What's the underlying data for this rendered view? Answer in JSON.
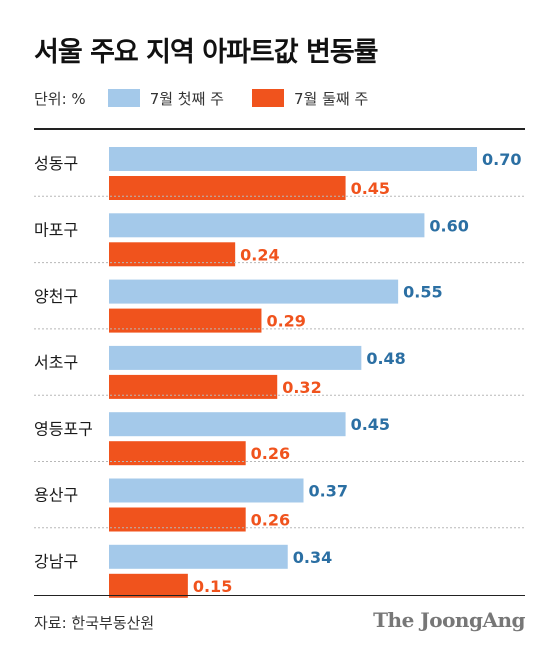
{
  "title": "서울 주요 지역 아파트값 변동률",
  "unit_label": "단위: %",
  "source": "자료: 한국부동산원",
  "brand": "The JoongAng",
  "colors": {
    "series1": "#a4c9ea",
    "series2": "#f0531d",
    "series1_label": "#2b6fa3",
    "series2_label": "#f0531d",
    "divider": "#b8b8b8"
  },
  "chart_data": {
    "type": "bar",
    "orientation": "horizontal",
    "categories": [
      "성동구",
      "마포구",
      "양천구",
      "서초구",
      "영등포구",
      "용산구",
      "강남구"
    ],
    "series": [
      {
        "name": "7월 첫째 주",
        "values": [
          0.7,
          0.6,
          0.55,
          0.48,
          0.45,
          0.37,
          0.34
        ],
        "labels": [
          "0.70",
          "0.60",
          "0.55",
          "0.48",
          "0.45",
          "0.37",
          "0.34"
        ]
      },
      {
        "name": "7월 둘째 주",
        "values": [
          0.45,
          0.24,
          0.29,
          0.32,
          0.26,
          0.26,
          0.15
        ],
        "labels": [
          "0.45",
          "0.24",
          "0.29",
          "0.32",
          "0.26",
          "0.26",
          "0.15"
        ]
      }
    ],
    "xlim": [
      0,
      0.7
    ],
    "legend": "top-left"
  }
}
